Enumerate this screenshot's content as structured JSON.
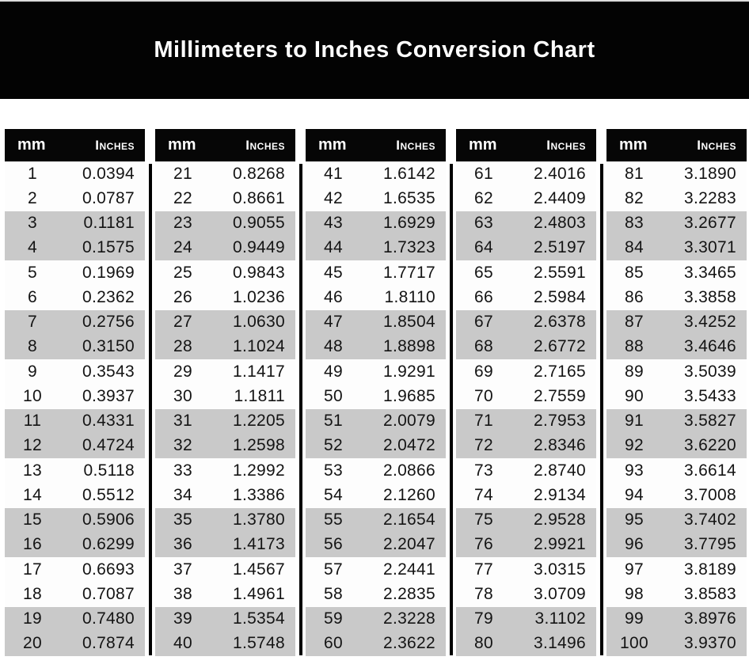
{
  "title": "Millimeters to Inches Conversion Chart",
  "colors": {
    "banner_bg": "#030303",
    "banner_text": "#ffffff",
    "header_bg": "#060606",
    "header_text": "#ffffff",
    "row_stripe": "#c9c9c9",
    "row_plain": "#fdfdfd",
    "divider": "#000000",
    "value_text": "#141414"
  },
  "chart_data": {
    "type": "table",
    "title": "Millimeters to Inches Conversion Chart",
    "columns": [
      "mm",
      "Inches"
    ],
    "header_labels": {
      "mm": "mm",
      "inches": "Inches"
    },
    "layout_hints": {
      "column_groups": 5,
      "rows_per_group": 20,
      "stripe_pattern": "rows alternate in pairs: 2 white, 2 gray",
      "dividers": "black vertical rules between groups, starting below headers"
    },
    "groups": [
      {
        "rows": [
          [
            "1",
            "0.0394"
          ],
          [
            "2",
            "0.0787"
          ],
          [
            "3",
            "0.1181"
          ],
          [
            "4",
            "0.1575"
          ],
          [
            "5",
            "0.1969"
          ],
          [
            "6",
            "0.2362"
          ],
          [
            "7",
            "0.2756"
          ],
          [
            "8",
            "0.3150"
          ],
          [
            "9",
            "0.3543"
          ],
          [
            "10",
            "0.3937"
          ],
          [
            "11",
            "0.4331"
          ],
          [
            "12",
            "0.4724"
          ],
          [
            "13",
            "0.5118"
          ],
          [
            "14",
            "0.5512"
          ],
          [
            "15",
            "0.5906"
          ],
          [
            "16",
            "0.6299"
          ],
          [
            "17",
            "0.6693"
          ],
          [
            "18",
            "0.7087"
          ],
          [
            "19",
            "0.7480"
          ],
          [
            "20",
            "0.7874"
          ]
        ]
      },
      {
        "rows": [
          [
            "21",
            "0.8268"
          ],
          [
            "22",
            "0.8661"
          ],
          [
            "23",
            "0.9055"
          ],
          [
            "24",
            "0.9449"
          ],
          [
            "25",
            "0.9843"
          ],
          [
            "26",
            "1.0236"
          ],
          [
            "27",
            "1.0630"
          ],
          [
            "28",
            "1.1024"
          ],
          [
            "29",
            "1.1417"
          ],
          [
            "30",
            "1.1811"
          ],
          [
            "31",
            "1.2205"
          ],
          [
            "32",
            "1.2598"
          ],
          [
            "33",
            "1.2992"
          ],
          [
            "34",
            "1.3386"
          ],
          [
            "35",
            "1.3780"
          ],
          [
            "36",
            "1.4173"
          ],
          [
            "37",
            "1.4567"
          ],
          [
            "38",
            "1.4961"
          ],
          [
            "39",
            "1.5354"
          ],
          [
            "40",
            "1.5748"
          ]
        ]
      },
      {
        "rows": [
          [
            "41",
            "1.6142"
          ],
          [
            "42",
            "1.6535"
          ],
          [
            "43",
            "1.6929"
          ],
          [
            "44",
            "1.7323"
          ],
          [
            "45",
            "1.7717"
          ],
          [
            "46",
            "1.8110"
          ],
          [
            "47",
            "1.8504"
          ],
          [
            "48",
            "1.8898"
          ],
          [
            "49",
            "1.9291"
          ],
          [
            "50",
            "1.9685"
          ],
          [
            "51",
            "2.0079"
          ],
          [
            "52",
            "2.0472"
          ],
          [
            "53",
            "2.0866"
          ],
          [
            "54",
            "2.1260"
          ],
          [
            "55",
            "2.1654"
          ],
          [
            "56",
            "2.2047"
          ],
          [
            "57",
            "2.2441"
          ],
          [
            "58",
            "2.2835"
          ],
          [
            "59",
            "2.3228"
          ],
          [
            "60",
            "2.3622"
          ]
        ]
      },
      {
        "rows": [
          [
            "61",
            "2.4016"
          ],
          [
            "62",
            "2.4409"
          ],
          [
            "63",
            "2.4803"
          ],
          [
            "64",
            "2.5197"
          ],
          [
            "65",
            "2.5591"
          ],
          [
            "66",
            "2.5984"
          ],
          [
            "67",
            "2.6378"
          ],
          [
            "68",
            "2.6772"
          ],
          [
            "69",
            "2.7165"
          ],
          [
            "70",
            "2.7559"
          ],
          [
            "71",
            "2.7953"
          ],
          [
            "72",
            "2.8346"
          ],
          [
            "73",
            "2.8740"
          ],
          [
            "74",
            "2.9134"
          ],
          [
            "75",
            "2.9528"
          ],
          [
            "76",
            "2.9921"
          ],
          [
            "77",
            "3.0315"
          ],
          [
            "78",
            "3.0709"
          ],
          [
            "79",
            "3.1102"
          ],
          [
            "80",
            "3.1496"
          ]
        ]
      },
      {
        "rows": [
          [
            "81",
            "3.1890"
          ],
          [
            "82",
            "3.2283"
          ],
          [
            "83",
            "3.2677"
          ],
          [
            "84",
            "3.3071"
          ],
          [
            "85",
            "3.3465"
          ],
          [
            "86",
            "3.3858"
          ],
          [
            "87",
            "3.4252"
          ],
          [
            "88",
            "3.4646"
          ],
          [
            "89",
            "3.5039"
          ],
          [
            "90",
            "3.5433"
          ],
          [
            "91",
            "3.5827"
          ],
          [
            "92",
            "3.6220"
          ],
          [
            "93",
            "3.6614"
          ],
          [
            "94",
            "3.7008"
          ],
          [
            "95",
            "3.7402"
          ],
          [
            "96",
            "3.7795"
          ],
          [
            "97",
            "3.8189"
          ],
          [
            "98",
            "3.8583"
          ],
          [
            "99",
            "3.8976"
          ],
          [
            "100",
            "3.9370"
          ]
        ]
      }
    ]
  }
}
